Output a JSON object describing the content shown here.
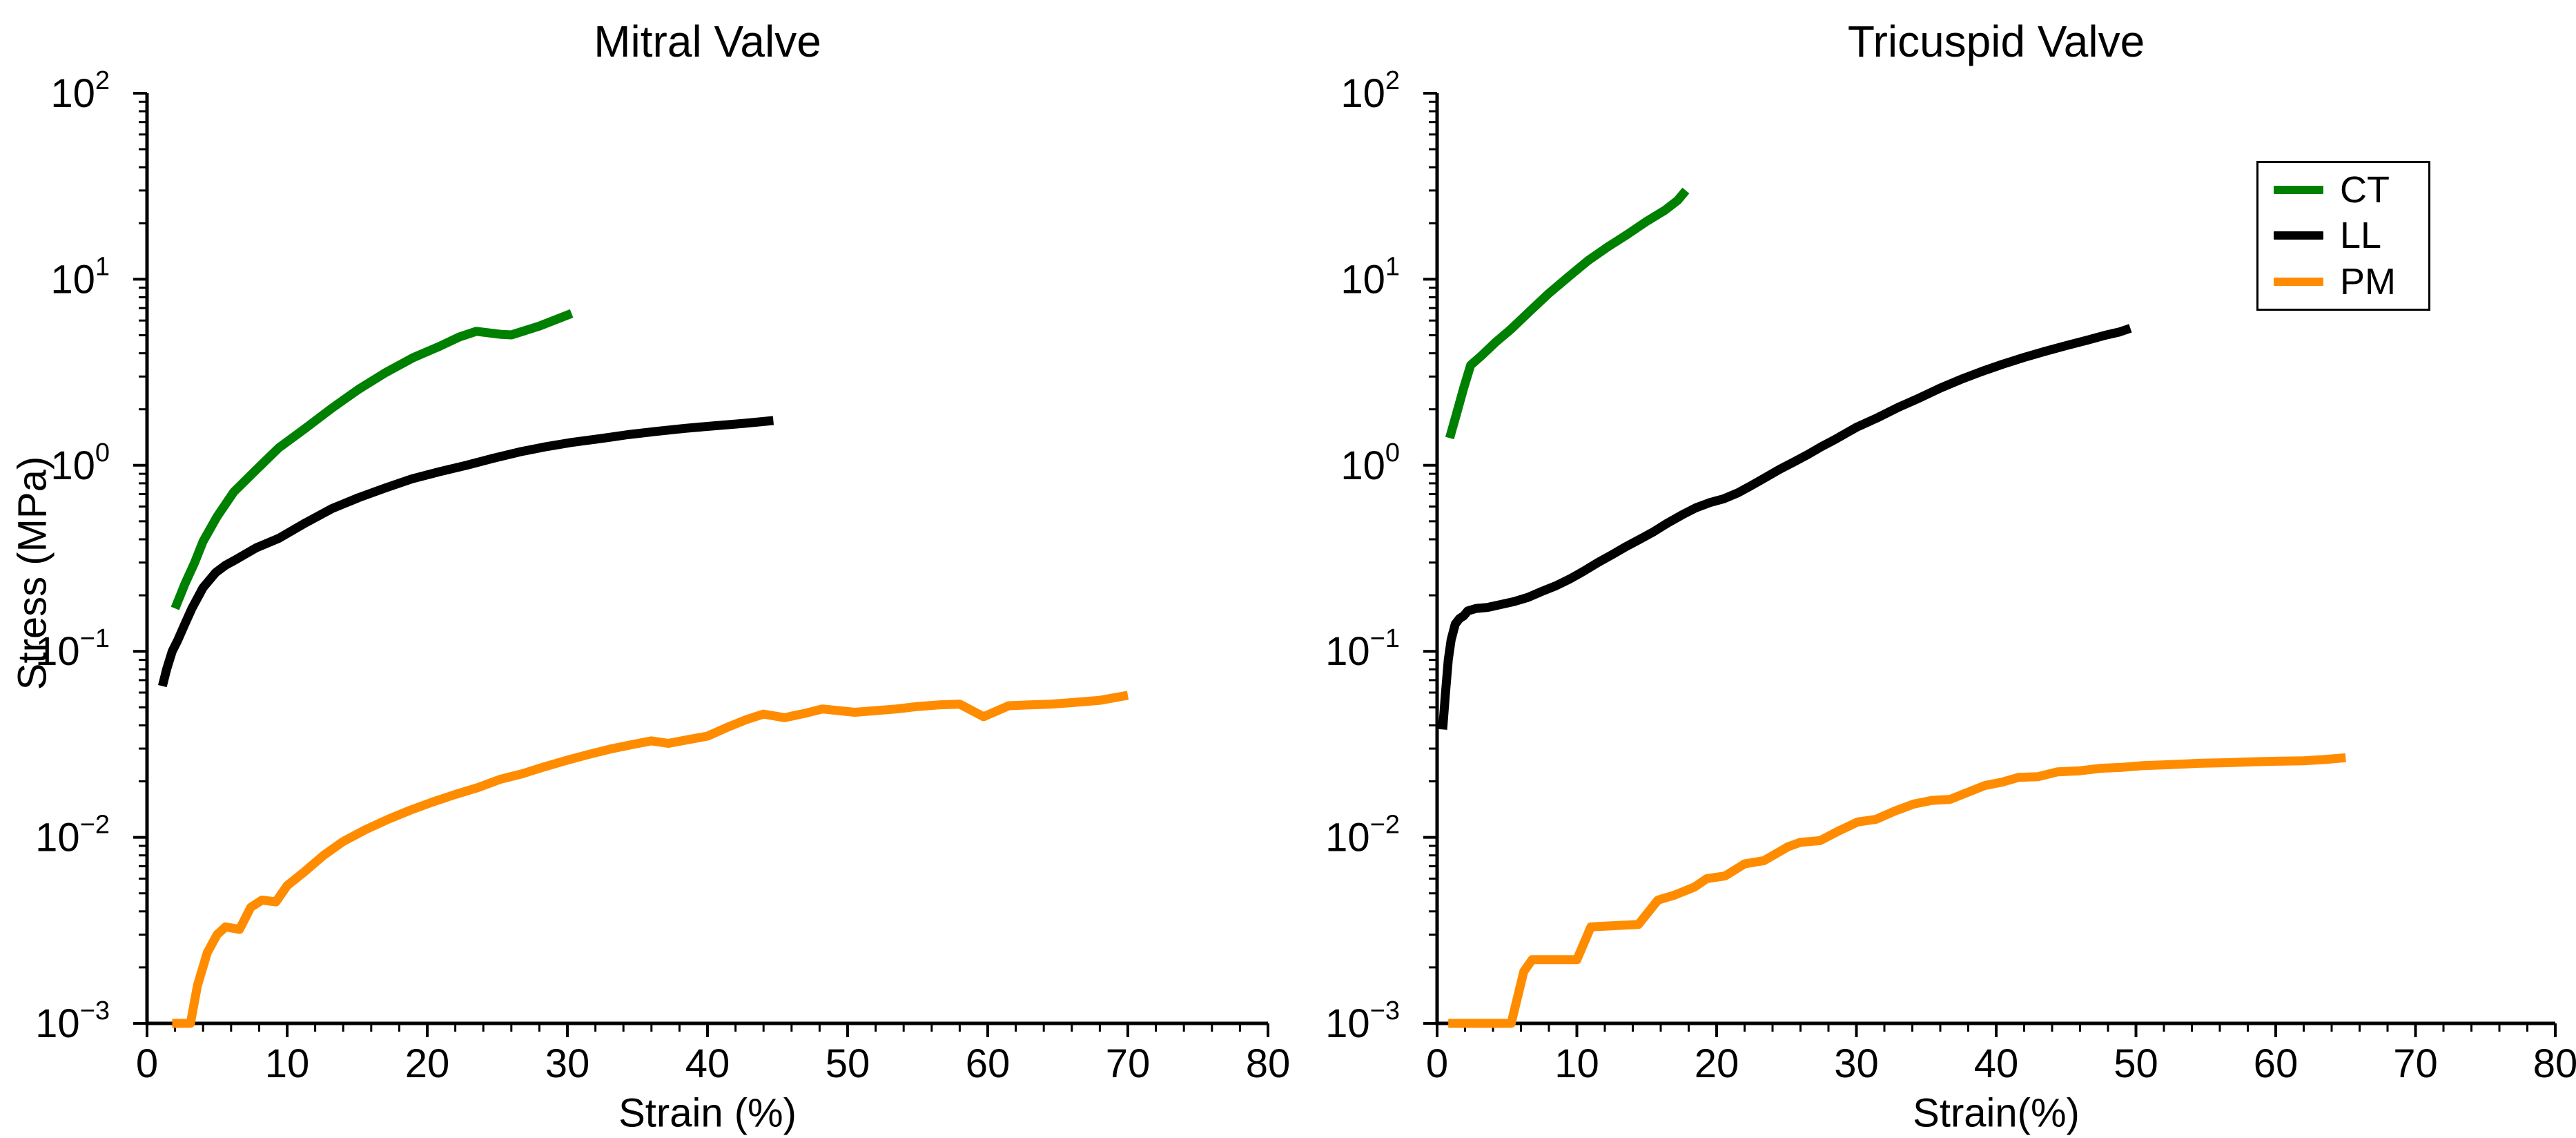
{
  "figure": {
    "background_color": "#ffffff",
    "text_color": "#000000"
  },
  "ylabel": "Stress (MPa)",
  "legend": {
    "items": [
      {
        "label": "CT",
        "color": "#008000"
      },
      {
        "label": "LL",
        "color": "#000000"
      },
      {
        "label": "PM",
        "color": "#FF8C00"
      }
    ]
  },
  "chart_data": [
    {
      "type": "line",
      "title": "Mitral Valve",
      "xlabel": "Strain (%)",
      "ylabel": "Stress (MPa)",
      "x_axis": {
        "min": 0,
        "max": 80,
        "major_ticks": [
          0,
          10,
          20,
          30,
          40,
          50,
          60,
          70,
          80
        ],
        "minor_tick_step": 2
      },
      "y_axis": {
        "scale": "log",
        "min": 0.001,
        "max": 100,
        "tick_exponents": [
          2,
          1,
          0,
          -1,
          -2,
          -3
        ],
        "log_minor_ticks": true
      },
      "grid": false,
      "legend_position": "none",
      "series": [
        {
          "name": "CT",
          "color": "#008000",
          "points": [
            [
              2.0,
              0.17
            ],
            [
              2.7,
              0.23
            ],
            [
              3.4,
              0.3
            ],
            [
              4.0,
              0.39
            ],
            [
              5.0,
              0.53
            ],
            [
              6.2,
              0.72
            ],
            [
              7.7,
              0.93
            ],
            [
              9.4,
              1.24
            ],
            [
              11.3,
              1.58
            ],
            [
              13.2,
              2.03
            ],
            [
              15.1,
              2.56
            ],
            [
              17.0,
              3.14
            ],
            [
              19.0,
              3.79
            ],
            [
              20.9,
              4.37
            ],
            [
              22.3,
              4.9
            ],
            [
              23.5,
              5.25
            ],
            [
              25.2,
              5.06
            ],
            [
              26.0,
              5.02
            ],
            [
              28.0,
              5.6
            ],
            [
              30.3,
              6.55
            ]
          ]
        },
        {
          "name": "LL",
          "color": "#000000",
          "points": [
            [
              1.1,
              0.065
            ],
            [
              1.4,
              0.08
            ],
            [
              1.8,
              0.1
            ],
            [
              2.2,
              0.115
            ],
            [
              2.7,
              0.14
            ],
            [
              3.2,
              0.17
            ],
            [
              4.0,
              0.22
            ],
            [
              4.9,
              0.265
            ],
            [
              5.6,
              0.29
            ],
            [
              6.3,
              0.31
            ],
            [
              7.8,
              0.36
            ],
            [
              9.4,
              0.405
            ],
            [
              11.3,
              0.49
            ],
            [
              13.2,
              0.585
            ],
            [
              15.1,
              0.67
            ],
            [
              17.0,
              0.755
            ],
            [
              18.9,
              0.845
            ],
            [
              20.9,
              0.925
            ],
            [
              22.8,
              1.0
            ],
            [
              24.7,
              1.09
            ],
            [
              26.6,
              1.18
            ],
            [
              28.5,
              1.26
            ],
            [
              30.4,
              1.33
            ],
            [
              32.3,
              1.39
            ],
            [
              34.3,
              1.46
            ],
            [
              36.3,
              1.52
            ],
            [
              38.4,
              1.58
            ],
            [
              40.5,
              1.63
            ],
            [
              42.6,
              1.68
            ],
            [
              44.7,
              1.74
            ]
          ]
        },
        {
          "name": "PM",
          "color": "#FF8C00",
          "points": [
            [
              1.8,
              0.001
            ],
            [
              3.1,
              0.001
            ],
            [
              3.6,
              0.0016
            ],
            [
              4.3,
              0.0024
            ],
            [
              5.0,
              0.003
            ],
            [
              5.6,
              0.0033
            ],
            [
              6.6,
              0.0032
            ],
            [
              7.4,
              0.0042
            ],
            [
              8.2,
              0.0046
            ],
            [
              9.2,
              0.0045
            ],
            [
              10.0,
              0.0055
            ],
            [
              11.2,
              0.0065
            ],
            [
              12.6,
              0.008
            ],
            [
              14.0,
              0.0095
            ],
            [
              15.6,
              0.011
            ],
            [
              17.2,
              0.0125
            ],
            [
              18.8,
              0.014
            ],
            [
              20.4,
              0.0155
            ],
            [
              22.0,
              0.017
            ],
            [
              23.6,
              0.0185
            ],
            [
              25.2,
              0.0205
            ],
            [
              26.8,
              0.022
            ],
            [
              28.4,
              0.024
            ],
            [
              30.0,
              0.026
            ],
            [
              31.6,
              0.028
            ],
            [
              33.2,
              0.03
            ],
            [
              34.6,
              0.0315
            ],
            [
              36.0,
              0.033
            ],
            [
              37.2,
              0.032
            ],
            [
              38.6,
              0.0335
            ],
            [
              40.0,
              0.035
            ],
            [
              41.4,
              0.039
            ],
            [
              42.8,
              0.043
            ],
            [
              44.0,
              0.046
            ],
            [
              45.5,
              0.044
            ],
            [
              47.0,
              0.0465
            ],
            [
              48.2,
              0.049
            ],
            [
              50.5,
              0.047
            ],
            [
              52.0,
              0.048
            ],
            [
              53.5,
              0.049
            ],
            [
              55.0,
              0.0505
            ],
            [
              56.5,
              0.0515
            ],
            [
              58.0,
              0.052
            ],
            [
              59.7,
              0.0445
            ],
            [
              61.5,
              0.051
            ],
            [
              63.0,
              0.0515
            ],
            [
              64.5,
              0.052
            ],
            [
              66.0,
              0.053
            ],
            [
              68.0,
              0.0545
            ],
            [
              70.0,
              0.058
            ]
          ]
        }
      ]
    },
    {
      "type": "line",
      "title": "Tricuspid Valve",
      "xlabel": "Strain(%)",
      "ylabel": "Stress (MPa)",
      "x_axis": {
        "min": 0,
        "max": 80,
        "major_ticks": [
          0,
          10,
          20,
          30,
          40,
          50,
          60,
          70,
          80
        ],
        "minor_tick_step": 2
      },
      "y_axis": {
        "scale": "log",
        "min": 0.001,
        "max": 100,
        "tick_exponents": [
          2,
          1,
          0,
          -1,
          -2,
          -3
        ],
        "log_minor_ticks": true
      },
      "grid": false,
      "legend_position": "upper-right-outside",
      "series": [
        {
          "name": "CT",
          "color": "#008000",
          "points": [
            [
              0.9,
              1.4
            ],
            [
              1.4,
              1.9
            ],
            [
              1.9,
              2.6
            ],
            [
              2.4,
              3.45
            ],
            [
              3.2,
              3.9
            ],
            [
              4.2,
              4.6
            ],
            [
              5.3,
              5.4
            ],
            [
              6.6,
              6.7
            ],
            [
              8.0,
              8.4
            ],
            [
              9.4,
              10.3
            ],
            [
              10.8,
              12.6
            ],
            [
              12.2,
              14.9
            ],
            [
              13.6,
              17.4
            ],
            [
              15.0,
              20.5
            ],
            [
              16.3,
              23.5
            ],
            [
              17.2,
              26.5
            ],
            [
              17.8,
              30.0
            ]
          ]
        },
        {
          "name": "LL",
          "color": "#000000",
          "points": [
            [
              0.4,
              0.038
            ],
            [
              0.6,
              0.06
            ],
            [
              0.8,
              0.09
            ],
            [
              1.0,
              0.115
            ],
            [
              1.3,
              0.14
            ],
            [
              1.6,
              0.15
            ],
            [
              1.9,
              0.155
            ],
            [
              2.2,
              0.165
            ],
            [
              2.8,
              0.17
            ],
            [
              3.6,
              0.172
            ],
            [
              4.5,
              0.178
            ],
            [
              5.5,
              0.185
            ],
            [
              6.5,
              0.195
            ],
            [
              7.5,
              0.21
            ],
            [
              8.5,
              0.225
            ],
            [
              9.5,
              0.245
            ],
            [
              10.5,
              0.27
            ],
            [
              11.5,
              0.3
            ],
            [
              12.5,
              0.33
            ],
            [
              13.5,
              0.365
            ],
            [
              14.5,
              0.4
            ],
            [
              15.5,
              0.44
            ],
            [
              16.5,
              0.49
            ],
            [
              17.5,
              0.54
            ],
            [
              18.5,
              0.59
            ],
            [
              19.5,
              0.63
            ],
            [
              20.5,
              0.66
            ],
            [
              21.5,
              0.71
            ],
            [
              22.5,
              0.78
            ],
            [
              23.5,
              0.86
            ],
            [
              24.5,
              0.95
            ],
            [
              25.5,
              1.04
            ],
            [
              26.5,
              1.14
            ],
            [
              27.5,
              1.26
            ],
            [
              28.5,
              1.38
            ],
            [
              30.0,
              1.6
            ],
            [
              31.5,
              1.8
            ],
            [
              33.0,
              2.05
            ],
            [
              34.5,
              2.3
            ],
            [
              36.0,
              2.6
            ],
            [
              37.5,
              2.9
            ],
            [
              39.0,
              3.2
            ],
            [
              40.5,
              3.5
            ],
            [
              42.0,
              3.8
            ],
            [
              43.5,
              4.1
            ],
            [
              45.0,
              4.4
            ],
            [
              46.5,
              4.7
            ],
            [
              47.8,
              5.0
            ],
            [
              48.8,
              5.2
            ],
            [
              49.6,
              5.45
            ]
          ]
        },
        {
          "name": "PM",
          "color": "#FF8C00",
          "points": [
            [
              0.8,
              0.001
            ],
            [
              5.3,
              0.001
            ],
            [
              6.2,
              0.0019
            ],
            [
              6.8,
              0.0022
            ],
            [
              10.0,
              0.0022
            ],
            [
              11.0,
              0.0033
            ],
            [
              14.4,
              0.0034
            ],
            [
              15.8,
              0.0046
            ],
            [
              17.0,
              0.0049
            ],
            [
              18.4,
              0.0054
            ],
            [
              19.3,
              0.006
            ],
            [
              20.6,
              0.0062
            ],
            [
              22.0,
              0.0072
            ],
            [
              23.4,
              0.0075
            ],
            [
              25.1,
              0.0089
            ],
            [
              26.0,
              0.0094
            ],
            [
              27.4,
              0.0096
            ],
            [
              28.7,
              0.0108
            ],
            [
              30.1,
              0.0121
            ],
            [
              31.4,
              0.0125
            ],
            [
              32.7,
              0.0138
            ],
            [
              34.1,
              0.0151
            ],
            [
              35.4,
              0.0158
            ],
            [
              36.7,
              0.016
            ],
            [
              38.0,
              0.0175
            ],
            [
              39.2,
              0.019
            ],
            [
              40.4,
              0.0198
            ],
            [
              41.6,
              0.021
            ],
            [
              43.0,
              0.0212
            ],
            [
              44.4,
              0.0225
            ],
            [
              46.0,
              0.0228
            ],
            [
              47.5,
              0.0235
            ],
            [
              49.0,
              0.0238
            ],
            [
              50.5,
              0.0243
            ],
            [
              52.5,
              0.0246
            ],
            [
              54.5,
              0.025
            ],
            [
              56.5,
              0.0252
            ],
            [
              58.5,
              0.0255
            ],
            [
              60.5,
              0.0257
            ],
            [
              62.0,
              0.0258
            ],
            [
              63.5,
              0.0262
            ],
            [
              65.0,
              0.0268
            ]
          ]
        }
      ]
    }
  ]
}
